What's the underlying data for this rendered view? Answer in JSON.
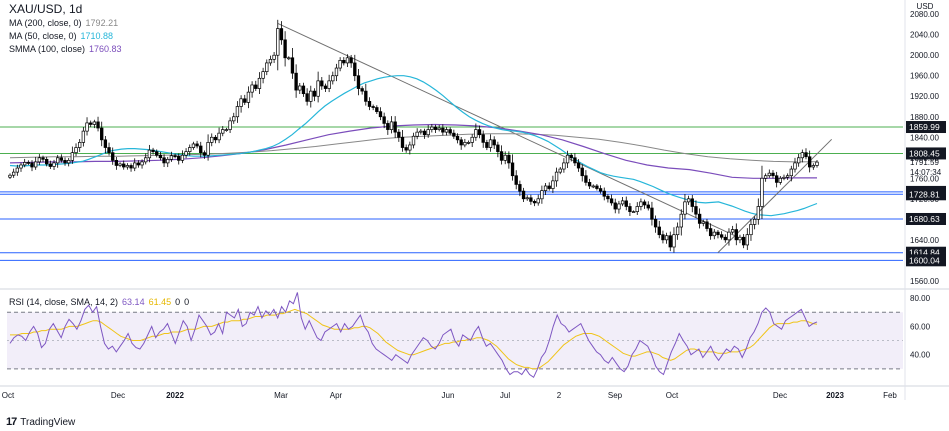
{
  "chart_data": {
    "type": "candlestick",
    "title": "XAU/USD, 1d",
    "currency_label": "USD",
    "price_axis_ticks": [
      "2080.00",
      "2040.00",
      "2000.00",
      "1960.00",
      "1920.00",
      "1880.00",
      "1840.00",
      "1800.00",
      "1760.00",
      "1720.00",
      "1680.00",
      "1640.00",
      "1600.00",
      "1560.00"
    ],
    "price_range": [
      1548,
      2096
    ],
    "time_ticks": [
      "Oct",
      "Dec",
      "2022",
      "Mar",
      "Apr",
      "Jun",
      "Jul",
      "2",
      "Sep",
      "Oct",
      "Dec",
      "2023",
      "Feb"
    ],
    "indicators": [
      {
        "name": "MA (200, close, 0)",
        "label": "MA (200, close, 0)",
        "value": "1792.21",
        "color": "#888888"
      },
      {
        "name": "MA (50, close, 0)",
        "label": "MA (50, close, 0)",
        "value": "1710.88",
        "color": "#26b6d9"
      },
      {
        "name": "SMMA (100, close)",
        "label": "SMMA (100, close)",
        "value": "1760.83",
        "color": "#7b4dbb"
      }
    ],
    "horizontal_levels": [
      {
        "value": 1859.99,
        "label": "1859.99",
        "color": "#4caf50"
      },
      {
        "value": 1808.45,
        "label": "1808.45",
        "color": "#4caf50"
      },
      {
        "value": 1733.41,
        "label": "1733.41",
        "color": "#2962ff"
      },
      {
        "value": 1728.81,
        "label": "1728.81",
        "color": "#2962ff"
      },
      {
        "value": 1680.63,
        "label": "1680.63",
        "color": "#2962ff"
      },
      {
        "value": 1614.84,
        "label": "1614.84",
        "color": "#2962ff"
      },
      {
        "value": 1600.04,
        "label": "1600.04",
        "color": "#2962ff"
      }
    ],
    "last_price": {
      "value": "1791.59",
      "countdown": "14:07:34"
    },
    "close_series": [
      1766,
      1772,
      1780,
      1786,
      1791,
      1790,
      1782,
      1792,
      1800,
      1797,
      1788,
      1783,
      1790,
      1800,
      1795,
      1790,
      1795,
      1810,
      1820,
      1830,
      1852,
      1868,
      1865,
      1870,
      1858,
      1835,
      1820,
      1810,
      1795,
      1785,
      1788,
      1782,
      1785,
      1780,
      1790,
      1786,
      1792,
      1800,
      1815,
      1812,
      1805,
      1800,
      1790,
      1797,
      1804,
      1803,
      1795,
      1805,
      1812,
      1820,
      1827,
      1823,
      1810,
      1805,
      1830,
      1840,
      1835,
      1848,
      1855,
      1855,
      1872,
      1880,
      1900,
      1915,
      1908,
      1928,
      1942,
      1935,
      1955,
      1968,
      1985,
      1992,
      2000,
      2052,
      2030,
      1995,
      1995,
      1965,
      1932,
      1940,
      1925,
      1910,
      1930,
      1920,
      1950,
      1940,
      1935,
      1950,
      1960,
      1975,
      1990,
      1985,
      1995,
      1985,
      1960,
      1935,
      1930,
      1910,
      1900,
      1898,
      1890,
      1880,
      1867,
      1855,
      1870,
      1850,
      1840,
      1820,
      1815,
      1825,
      1842,
      1850,
      1852,
      1845,
      1855,
      1860,
      1855,
      1858,
      1850,
      1855,
      1848,
      1842,
      1835,
      1825,
      1830,
      1830,
      1840,
      1855,
      1845,
      1830,
      1820,
      1835,
      1825,
      1812,
      1795,
      1805,
      1790,
      1765,
      1748,
      1735,
      1720,
      1722,
      1715,
      1712,
      1720,
      1736,
      1745,
      1740,
      1755,
      1772,
      1778,
      1790,
      1805,
      1800,
      1790,
      1780,
      1765,
      1752,
      1745,
      1745,
      1740,
      1735,
      1725,
      1720,
      1712,
      1700,
      1710,
      1716,
      1705,
      1695,
      1695,
      1705,
      1714,
      1708,
      1702,
      1680,
      1665,
      1650,
      1640,
      1648,
      1626,
      1650,
      1665,
      1690,
      1714,
      1720,
      1705,
      1690,
      1672,
      1675,
      1662,
      1648,
      1655,
      1650,
      1645,
      1640,
      1655,
      1660,
      1640,
      1645,
      1630,
      1650,
      1670,
      1680,
      1705,
      1760,
      1765,
      1770,
      1765,
      1752,
      1760,
      1762,
      1765,
      1778,
      1790,
      1800,
      1810,
      1802,
      1782,
      1785,
      1791.59
    ],
    "ma50_series": [
      1785,
      1784,
      1784,
      1785,
      1786,
      1786,
      1786,
      1787,
      1788,
      1789,
      1791,
      1793,
      1797,
      1802,
      1807,
      1812,
      1815,
      1817,
      1818,
      1818,
      1817,
      1816,
      1814,
      1812,
      1810,
      1808,
      1806,
      1804,
      1803,
      1803,
      1803,
      1804,
      1805,
      1806,
      1807,
      1808,
      1810,
      1812,
      1815,
      1818,
      1822,
      1828,
      1836,
      1845,
      1856,
      1866,
      1878,
      1890,
      1901,
      1910,
      1918,
      1926,
      1933,
      1940,
      1946,
      1950,
      1954,
      1957,
      1959,
      1960,
      1960,
      1958,
      1954,
      1948,
      1940,
      1931,
      1921,
      1910,
      1899,
      1889,
      1880,
      1873,
      1867,
      1862,
      1858,
      1855,
      1853,
      1852,
      1850,
      1847,
      1843,
      1838,
      1832,
      1824,
      1816,
      1807,
      1798,
      1790,
      1783,
      1777,
      1771,
      1767,
      1764,
      1762,
      1760,
      1758,
      1754,
      1749,
      1744,
      1738,
      1732,
      1727,
      1723,
      1719,
      1716,
      1713,
      1712,
      1713,
      1714,
      1710,
      1706,
      1701,
      1696,
      1692,
      1689,
      1688,
      1687,
      1689,
      1691,
      1694,
      1697,
      1701,
      1706,
      1710.88
    ],
    "ma200_series": [
      1800,
      1801,
      1802,
      1802,
      1803,
      1803,
      1804,
      1805,
      1806,
      1807,
      1809,
      1811,
      1814,
      1818,
      1822,
      1827,
      1832,
      1837,
      1840,
      1842,
      1844,
      1846,
      1847,
      1847,
      1846,
      1844,
      1840,
      1836,
      1830,
      1823,
      1815,
      1808,
      1802,
      1798,
      1795,
      1793,
      1792,
      1792.21
    ],
    "smma_series": [
      1790,
      1791,
      1792,
      1792,
      1793,
      1793,
      1794,
      1795,
      1797,
      1800,
      1804,
      1809,
      1816,
      1825,
      1835,
      1845,
      1852,
      1858,
      1862,
      1864,
      1865,
      1864,
      1862,
      1858,
      1852,
      1845,
      1835,
      1822,
      1808,
      1795,
      1786,
      1780,
      1777,
      1770,
      1762,
      1760,
      1760,
      1761,
      1760.83
    ],
    "trendlines": [
      {
        "name": "descending-trendline",
        "from": {
          "bar": 73,
          "price": 2062
        },
        "to": {
          "bar": 200,
          "price": 1640
        }
      },
      {
        "name": "ascending-trendline",
        "from": {
          "bar": 193,
          "price": 1615
        },
        "to": {
          "bar": 224,
          "price": 1836
        }
      }
    ],
    "rsi": {
      "label": "RSI (14, close, SMA, 14, 2)",
      "value": "63.14",
      "sma_value": "61.45",
      "extra1": "0",
      "extra2": "0",
      "ticks": [
        "80.00",
        "60.00",
        "40.00"
      ],
      "range": [
        20,
        85
      ],
      "upper": 70,
      "lower": 30,
      "mid": 50,
      "series": [
        48,
        52,
        54,
        53,
        50,
        56,
        60,
        55,
        45,
        48,
        58,
        62,
        57,
        52,
        60,
        65,
        62,
        58,
        64,
        72,
        75,
        70,
        74,
        60,
        48,
        44,
        46,
        42,
        46,
        50,
        55,
        48,
        45,
        44,
        48,
        54,
        60,
        52,
        56,
        58,
        62,
        55,
        48,
        56,
        64,
        60,
        50,
        58,
        68,
        64,
        60,
        54,
        56,
        62,
        55,
        70,
        68,
        66,
        72,
        60,
        62,
        70,
        68,
        74,
        66,
        71,
        68,
        72,
        66,
        74,
        70,
        78,
        76,
        84,
        66,
        58,
        64,
        58,
        52,
        50,
        56,
        58,
        60,
        62,
        56,
        62,
        58,
        60,
        64,
        68,
        60,
        56,
        48,
        44,
        42,
        40,
        38,
        36,
        40,
        38,
        36,
        34,
        40,
        44,
        48,
        52,
        50,
        46,
        44,
        48,
        54,
        56,
        58,
        50,
        46,
        54,
        52,
        50,
        56,
        60,
        52,
        46,
        48,
        44,
        40,
        36,
        30,
        26,
        28,
        28,
        26,
        30,
        26,
        24,
        30,
        38,
        42,
        50,
        60,
        68,
        62,
        60,
        56,
        58,
        60,
        62,
        56,
        50,
        46,
        42,
        40,
        36,
        34,
        38,
        34,
        30,
        28,
        32,
        40,
        44,
        50,
        48,
        46,
        40,
        32,
        28,
        26,
        34,
        42,
        48,
        55,
        50,
        46,
        40,
        42,
        44,
        38,
        42,
        46,
        40,
        36,
        40,
        44,
        42,
        46,
        44,
        38,
        44,
        52,
        56,
        62,
        70,
        73,
        70,
        62,
        60,
        58,
        64,
        66,
        68,
        70,
        72,
        66,
        60,
        62,
        63.14
      ],
      "sma_series": [
        54,
        54,
        54,
        55,
        55,
        55,
        56,
        56,
        57,
        57,
        58,
        58,
        58,
        58,
        59,
        60,
        60,
        60,
        61,
        62,
        63,
        64,
        64,
        63,
        61,
        59,
        57,
        55,
        53,
        52,
        51,
        50,
        50,
        50,
        51,
        52,
        53,
        53,
        54,
        55,
        55,
        56,
        56,
        56,
        57,
        58,
        58,
        58,
        59,
        60,
        60,
        60,
        61,
        62,
        63,
        63,
        64,
        64,
        64,
        65,
        65,
        66,
        67,
        67,
        67,
        68,
        68,
        68,
        69,
        69,
        70,
        71,
        72,
        71,
        70,
        69,
        67,
        65,
        63,
        61,
        60,
        59,
        58,
        58,
        58,
        58,
        58,
        59,
        59,
        60,
        60,
        59,
        57,
        55,
        52,
        49,
        47,
        45,
        43,
        42,
        41,
        40,
        40,
        41,
        42,
        43,
        44,
        45,
        46,
        47,
        48,
        48,
        49,
        49,
        50,
        50,
        51,
        51,
        52,
        52,
        51,
        50,
        48,
        46,
        43,
        40,
        37,
        35,
        33,
        32,
        31,
        31,
        30,
        30,
        31,
        33,
        35,
        38,
        41,
        44,
        47,
        49,
        51,
        53,
        54,
        55,
        55,
        55,
        54,
        53,
        51,
        49,
        47,
        45,
        43,
        41,
        40,
        39,
        39,
        40,
        41,
        42,
        42,
        41,
        40,
        38,
        37,
        36,
        37,
        39,
        41,
        43,
        44,
        44,
        43,
        42,
        42,
        42,
        42,
        41,
        41,
        41,
        42,
        42,
        42,
        43,
        44,
        45,
        47,
        50,
        53,
        56,
        59,
        61,
        62,
        62,
        62,
        62,
        63,
        63,
        64,
        64,
        63,
        62,
        61.45
      ]
    }
  },
  "footer": {
    "brand": "TradingView",
    "logo_text": "17"
  }
}
